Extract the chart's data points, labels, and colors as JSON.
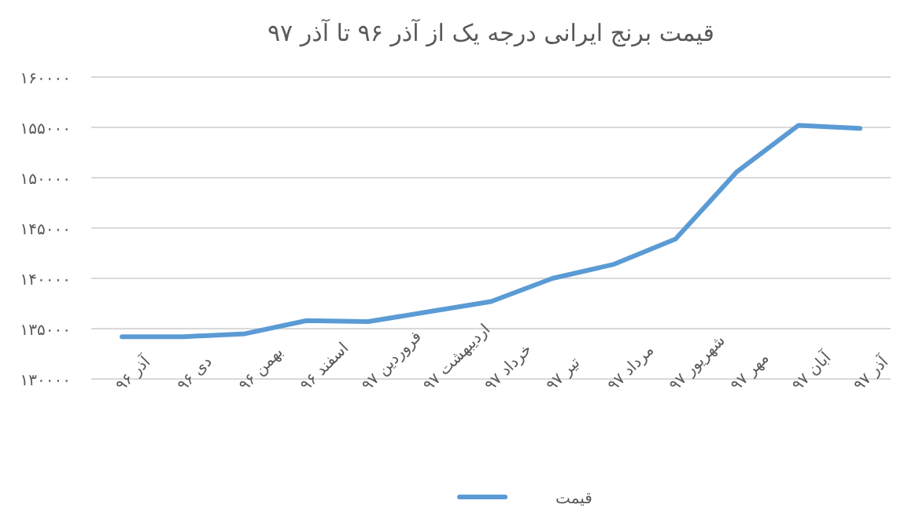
{
  "chart_data": {
    "type": "line",
    "title": "قیمت برنج ایرانی درجه یک از آذر ۹۶ تا آذر ۹۷",
    "categories": [
      "آذر ۹۶",
      "دی ۹۶",
      "بهمن ۹۶",
      "اسفند ۹۶",
      "فروردین ۹۷",
      "اردیبهشت ۹۷",
      "خرداد ۹۷",
      "تیر ۹۷",
      "مرداد ۹۷",
      "شهریور ۹۷",
      "مهر ۹۷",
      "آبان ۹۷",
      "آذر ۹۷"
    ],
    "series": [
      {
        "name": "قیمت",
        "color": "#5b9bd5",
        "values": [
          134200,
          134200,
          134500,
          135800,
          135700,
          136700,
          137700,
          140000,
          141400,
          143900,
          150600,
          155200,
          154900
        ]
      }
    ],
    "ylim": [
      130000,
      160000
    ],
    "yticks": [
      {
        "value": 130000,
        "label": "۱۳۰۰۰۰"
      },
      {
        "value": 135000,
        "label": "۱۳۵۰۰۰"
      },
      {
        "value": 140000,
        "label": "۱۴۰۰۰۰"
      },
      {
        "value": 145000,
        "label": "۱۴۵۰۰۰"
      },
      {
        "value": 150000,
        "label": "۱۵۰۰۰۰"
      },
      {
        "value": 155000,
        "label": "۱۵۵۰۰۰"
      },
      {
        "value": 160000,
        "label": "۱۶۰۰۰۰"
      }
    ],
    "grid": "y",
    "legend": "bottom",
    "marker": "none",
    "line_style": "solid"
  }
}
